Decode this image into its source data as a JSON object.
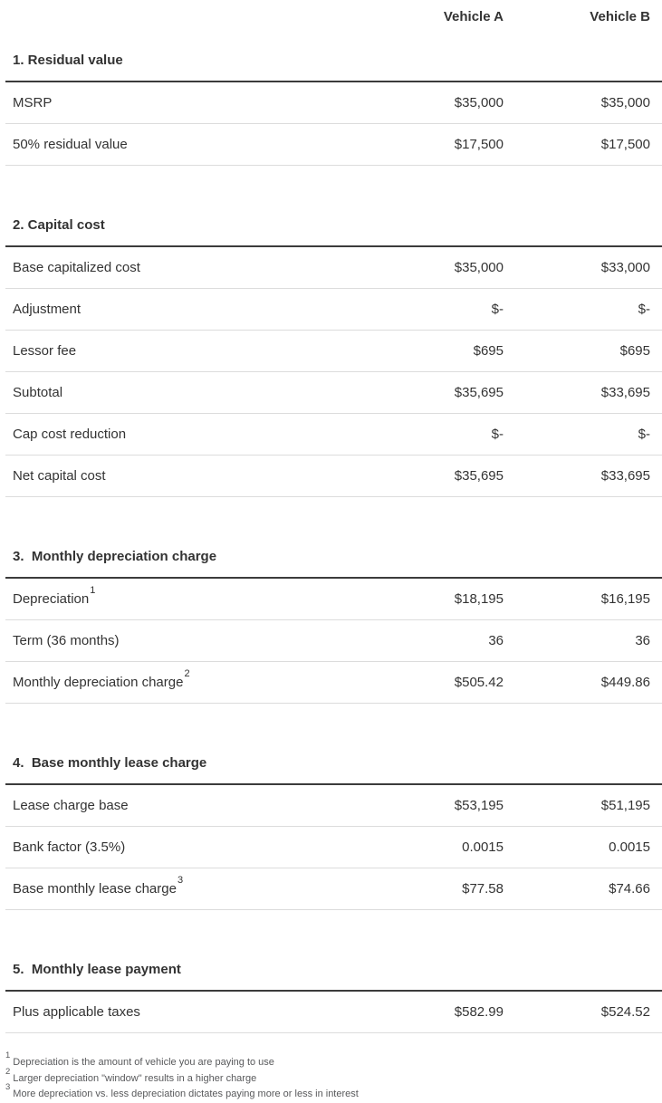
{
  "columns": [
    "Vehicle A",
    "Vehicle B"
  ],
  "colors": {
    "background": "#ffffff",
    "text": "#333333",
    "heavy_rule": "#3b3b3b",
    "light_rule": "#dcdcdc",
    "footnote_text": "#58595b"
  },
  "sections": [
    {
      "heading": "1. Residual value",
      "rows": [
        {
          "label": "MSRP",
          "a": "$35,000",
          "b": "$35,000"
        },
        {
          "label": "50% residual value",
          "a": "$17,500",
          "b": "$17,500"
        }
      ]
    },
    {
      "heading": "2. Capital cost",
      "rows": [
        {
          "label": "Base capitalized cost",
          "a": "$35,000",
          "b": "$33,000"
        },
        {
          "label": "Adjustment",
          "a": "$-",
          "b": "$-"
        },
        {
          "label": "Lessor fee",
          "a": "$695",
          "b": "$695"
        },
        {
          "label": "Subtotal",
          "a": "$35,695",
          "b": "$33,695"
        },
        {
          "label": "Cap cost reduction",
          "a": "$-",
          "b": "$-"
        },
        {
          "label": "Net capital cost",
          "a": "$35,695",
          "b": "$33,695"
        }
      ]
    },
    {
      "heading": "3.  Monthly depreciation charge",
      "rows": [
        {
          "label": "Depreciation",
          "sup": "1",
          "a": "$18,195",
          "b": "$16,195"
        },
        {
          "label": "Term (36 months)",
          "a": "36",
          "b": "36"
        },
        {
          "label": "Monthly depreciation charge",
          "sup": "2",
          "a": "$505.42",
          "b": "$449.86"
        }
      ]
    },
    {
      "heading": "4.  Base monthly lease charge",
      "rows": [
        {
          "label": "Lease charge base",
          "a": "$53,195",
          "b": "$51,195"
        },
        {
          "label": "Bank factor (3.5%)",
          "a": "0.0015",
          "b": "0.0015"
        },
        {
          "label": "Base monthly lease charge",
          "sup": "3",
          "a": "$77.58",
          "b": "$74.66"
        }
      ]
    },
    {
      "heading": "5.  Monthly lease payment",
      "rows": [
        {
          "label": "Plus applicable taxes",
          "a": "$582.99",
          "b": "$524.52"
        }
      ]
    }
  ],
  "footnotes": [
    {
      "sup": "1",
      "text": "Depreciation is the amount of vehicle you are paying to use"
    },
    {
      "sup": "2",
      "text": "Larger depreciation \"window\" results in a higher charge"
    },
    {
      "sup": "3",
      "text": "More depreciation vs. less depreciation dictates paying more or less in interest"
    }
  ]
}
